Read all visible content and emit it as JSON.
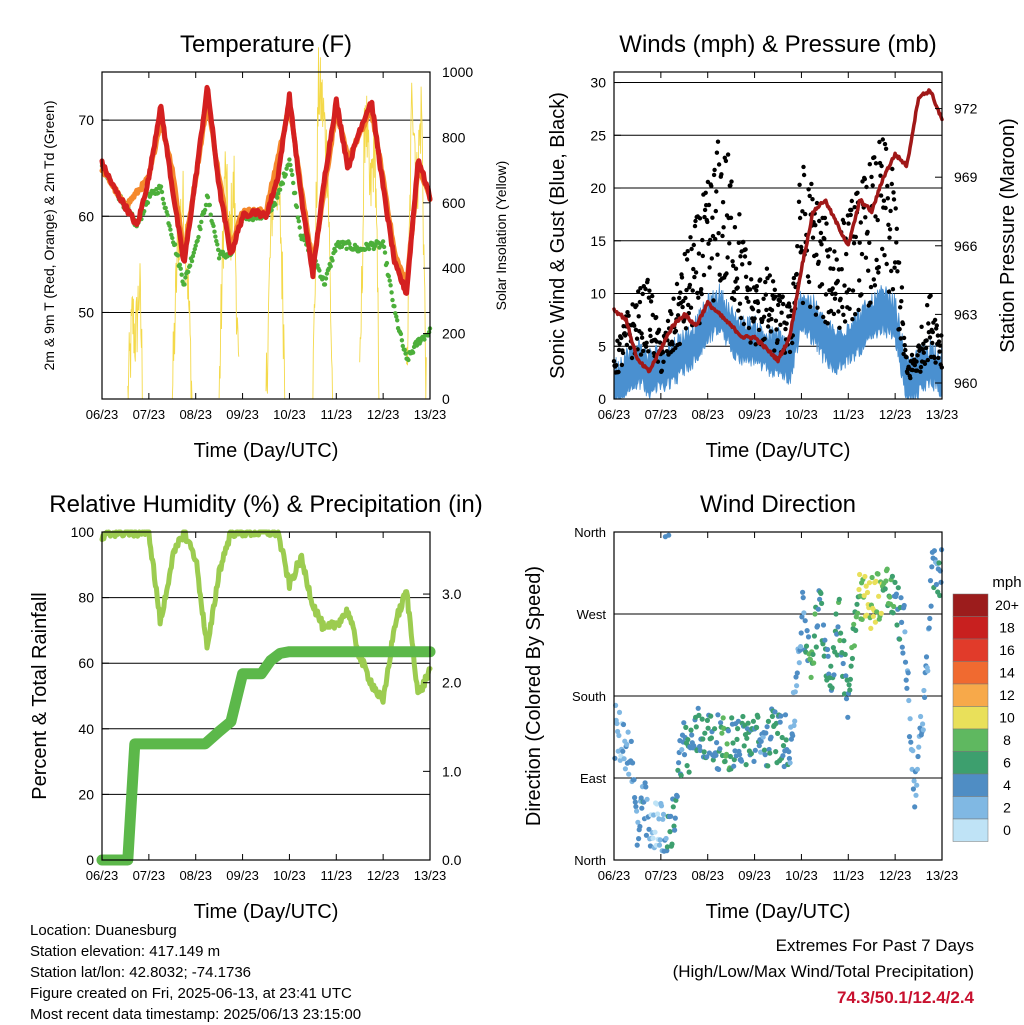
{
  "chart_data": [
    {
      "type": "line",
      "title": "Temperature (F)",
      "xlabel": "Time (Day/UTC)",
      "ylabel": "2m & 9m T (Red, Orange) & 2m Td (Green)",
      "y2label": "Solar Insolation (Yellow)",
      "x_ticks": [
        "06/23",
        "07/23",
        "08/23",
        "09/23",
        "10/23",
        "11/23",
        "12/23",
        "13/23"
      ],
      "ylim": [
        41,
        75
      ],
      "y_ticks": [
        50,
        60,
        70
      ],
      "y2lim": [
        0,
        1000
      ],
      "y2_ticks": [
        0,
        200,
        400,
        600,
        800,
        1000
      ],
      "grid": "horizontal",
      "series": [
        {
          "name": "2m T",
          "color": "#d42020",
          "x": [
            0,
            0.25,
            0.5,
            0.75,
            1.0,
            1.25,
            1.5,
            1.75,
            2.0,
            2.25,
            2.5,
            2.75,
            3.0,
            3.25,
            3.5,
            3.75,
            4.0,
            4.25,
            4.5,
            4.75,
            5.0,
            5.25,
            5.5,
            5.75,
            6.0,
            6.25,
            6.5,
            6.75,
            7.0
          ],
          "values": [
            65.5,
            63,
            61,
            59,
            64,
            71.5,
            63,
            55,
            64,
            73.5,
            63,
            56,
            60,
            60.5,
            60,
            64,
            72.5,
            62,
            54,
            64,
            72,
            65,
            69,
            72,
            63,
            55,
            52,
            66,
            62
          ]
        },
        {
          "name": "9m T",
          "color": "#f5892c",
          "x": [
            0,
            0.5,
            1.0,
            1.25,
            1.5,
            1.75,
            2.0,
            2.25,
            2.5,
            2.75,
            3.0,
            3.5,
            4.0,
            4.25,
            4.5,
            4.75,
            5.0,
            5.25,
            5.5,
            5.75,
            6.0,
            6.25,
            6.5,
            6.75,
            7.0
          ],
          "values": [
            65,
            61,
            64,
            70,
            65,
            56,
            64,
            72,
            64,
            57,
            60.5,
            60.5,
            71.5,
            63,
            55,
            63,
            71,
            66,
            68.5,
            71,
            64,
            56,
            53,
            65,
            62
          ]
        },
        {
          "name": "2m Td",
          "color": "#4caf3a",
          "x": [
            0,
            0.5,
            0.75,
            1.0,
            1.25,
            1.5,
            1.75,
            2.0,
            2.25,
            2.5,
            2.75,
            3.0,
            3.5,
            3.75,
            4.0,
            4.25,
            4.5,
            4.75,
            5.0,
            5.25,
            5.5,
            5.75,
            6.0,
            6.25,
            6.5,
            6.75,
            7.0
          ],
          "values": [
            65,
            61,
            59,
            62,
            63,
            58,
            53,
            57,
            62,
            56,
            56,
            60,
            60,
            62,
            66,
            58,
            56,
            53,
            57,
            57,
            56.5,
            57,
            57,
            50,
            45,
            47,
            48
          ]
        },
        {
          "name": "Solar Insolation",
          "color": "#f4d94a",
          "axis": "y2",
          "x": [
            0.55,
            0.65,
            0.72,
            0.8,
            0.88,
            1.5,
            1.62,
            1.72,
            1.82,
            1.92,
            2.5,
            2.62,
            2.72,
            2.82,
            2.92,
            3.5,
            3.62,
            3.72,
            3.82,
            3.92,
            4.5,
            4.62,
            4.72,
            4.82,
            4.92,
            5.5,
            5.62,
            5.72,
            5.82,
            5.92,
            6.5,
            6.62,
            6.72,
            6.82,
            6.92
          ],
          "values": [
            0,
            250,
            180,
            350,
            0,
            0,
            500,
            600,
            420,
            0,
            0,
            700,
            480,
            650,
            0,
            0,
            580,
            720,
            500,
            0,
            0,
            950,
            880,
            700,
            0,
            0,
            920,
            600,
            800,
            0,
            0,
            980,
            650,
            900,
            0
          ]
        }
      ]
    },
    {
      "type": "line",
      "title": "Winds (mph) & Pressure (mb)",
      "xlabel": "Time (Day/UTC)",
      "ylabel": "Sonic Wind & Gust (Blue, Black)",
      "y2label": "Station Pressure (Maroon)",
      "x_ticks": [
        "06/23",
        "07/23",
        "08/23",
        "09/23",
        "10/23",
        "11/23",
        "12/23",
        "13/23"
      ],
      "ylim": [
        0,
        31
      ],
      "y_ticks": [
        0,
        5,
        10,
        15,
        20,
        25,
        30
      ],
      "y2lim": [
        959.3,
        973.6
      ],
      "y2_ticks": [
        960,
        963,
        966,
        969,
        972
      ],
      "grid": "horizontal",
      "series": [
        {
          "name": "Sonic Wind",
          "color": "#4a90d0",
          "x": [
            0,
            0.25,
            0.5,
            0.75,
            1.0,
            1.25,
            1.5,
            1.75,
            2.0,
            2.25,
            2.5,
            2.75,
            3.0,
            3.25,
            3.5,
            3.75,
            4.0,
            4.25,
            4.5,
            4.75,
            5.0,
            5.25,
            5.5,
            5.75,
            6.0,
            6.25,
            6.5,
            6.75,
            7.0
          ],
          "values": [
            2,
            3,
            4,
            3,
            3.5,
            4,
            5,
            6,
            8,
            9,
            7,
            6,
            6,
            5,
            5,
            4,
            9,
            8,
            6,
            5,
            6,
            7,
            8,
            9,
            8,
            2,
            3,
            4,
            3
          ]
        },
        {
          "name": "Gust",
          "color": "#000000",
          "x": [
            0,
            0.25,
            0.5,
            0.75,
            1.0,
            1.25,
            1.5,
            1.75,
            2.0,
            2.25,
            2.5,
            2.75,
            3.0,
            3.25,
            3.5,
            3.75,
            4.0,
            4.25,
            4.5,
            4.75,
            5.0,
            5.25,
            5.5,
            5.75,
            6.0,
            6.25,
            6.5,
            6.75,
            7.0
          ],
          "values": [
            4,
            7,
            9,
            10,
            5,
            8,
            12,
            15,
            18,
            22,
            20,
            14,
            10,
            11,
            9,
            8,
            20,
            18,
            15,
            14,
            16,
            18,
            20,
            22,
            18,
            3,
            5,
            9,
            6
          ]
        },
        {
          "name": "Station Pressure",
          "color": "#a01818",
          "axis": "y2",
          "x": [
            0,
            0.25,
            0.5,
            0.75,
            1.0,
            1.25,
            1.5,
            1.75,
            2.0,
            2.25,
            2.5,
            2.75,
            3.0,
            3.25,
            3.5,
            3.75,
            4.0,
            4.25,
            4.5,
            4.75,
            5.0,
            5.25,
            5.5,
            5.75,
            6.0,
            6.25,
            6.5,
            6.75,
            7.0
          ],
          "values": [
            963.2,
            962.8,
            961,
            960.5,
            961.5,
            962.5,
            963,
            962.5,
            963.5,
            963,
            962.5,
            962,
            962,
            961.5,
            961,
            962,
            965,
            967.5,
            968,
            967,
            966,
            968,
            967.5,
            969,
            970,
            969.5,
            972.5,
            972.8,
            971.5
          ]
        }
      ]
    },
    {
      "type": "line",
      "title": "Relative Humidity (%) & Precipitation (in)",
      "xlabel": "Time (Day/UTC)",
      "ylabel": "Percent & Total Rainfall",
      "x_ticks": [
        "06/23",
        "07/23",
        "08/23",
        "09/23",
        "10/23",
        "11/23",
        "12/23",
        "13/23"
      ],
      "ylim": [
        0,
        100
      ],
      "y_ticks": [
        0,
        20,
        40,
        60,
        80,
        100
      ],
      "y2lim": [
        0,
        3.7
      ],
      "y2_ticks": [
        "0.0",
        "1.0",
        "2.0",
        "3.0"
      ],
      "grid": "horizontal",
      "series": [
        {
          "name": "Relative Humidity",
          "color": "#9ccc50",
          "x": [
            0,
            0.25,
            0.5,
            0.75,
            1.0,
            1.25,
            1.5,
            1.75,
            2.0,
            2.25,
            2.5,
            2.75,
            3.0,
            3.25,
            3.5,
            3.75,
            4.0,
            4.25,
            4.5,
            4.75,
            5.0,
            5.25,
            5.5,
            5.75,
            6.0,
            6.25,
            6.5,
            6.75,
            7.0
          ],
          "values": [
            98,
            100,
            100,
            100,
            100,
            72,
            92,
            100,
            92,
            64,
            88,
            100,
            100,
            100,
            100,
            100,
            84,
            92,
            78,
            70,
            72,
            76,
            62,
            54,
            48,
            72,
            82,
            50,
            58
          ]
        },
        {
          "name": "Total Precipitation",
          "color": "#5cb84a",
          "axis": "y2",
          "x": [
            0,
            0.55,
            0.7,
            1.0,
            1.5,
            2.0,
            2.2,
            2.5,
            2.75,
            3.0,
            3.4,
            3.6,
            3.8,
            4.0,
            4.5,
            5.0,
            6.0,
            7.0
          ],
          "values": [
            0,
            0,
            1.31,
            1.31,
            1.31,
            1.31,
            1.31,
            1.45,
            1.56,
            2.1,
            2.1,
            2.25,
            2.33,
            2.35,
            2.35,
            2.35,
            2.35,
            2.35
          ]
        }
      ]
    },
    {
      "type": "scatter",
      "title": "Wind Direction",
      "xlabel": "Time (Day/UTC)",
      "ylabel": "Direction (Colored By Speed)",
      "x_ticks": [
        "06/23",
        "07/23",
        "08/23",
        "09/23",
        "10/23",
        "11/23",
        "12/23",
        "13/23"
      ],
      "y_ticks": [
        "North",
        "East",
        "South",
        "West",
        "North"
      ],
      "ylim": [
        0,
        360
      ],
      "grid": "horizontal",
      "legend": {
        "title": "mph",
        "labels": [
          "20+",
          "18",
          "16",
          "14",
          "12",
          "10",
          "8",
          "6",
          "4",
          "2",
          "0"
        ],
        "colors": [
          "#9c1c1c",
          "#c8201f",
          "#e13b2a",
          "#f06a30",
          "#f7a94a",
          "#e9e05a",
          "#5fb860",
          "#3d9f6e",
          "#4f8dc4",
          "#80b8e3",
          "#bfe3f6"
        ]
      },
      "series": [
        {
          "name": "Direction",
          "x": [
            0.05,
            0.2,
            0.35,
            0.5,
            0.65,
            0.8,
            0.95,
            1.1,
            1.25,
            1.45,
            1.6,
            1.8,
            2.0,
            2.2,
            2.4,
            2.6,
            2.8,
            3.0,
            3.2,
            3.4,
            3.6,
            3.8,
            4.0,
            4.2,
            4.4,
            4.6,
            4.8,
            5.0,
            5.2,
            5.4,
            5.6,
            5.8,
            6.0,
            6.2,
            6.4,
            6.6,
            6.8
          ],
          "values": [
            140,
            130,
            120,
            30,
            60,
            20,
            50,
            10,
            40,
            130,
            120,
            140,
            135,
            130,
            125,
            132,
            130,
            135,
            125,
            140,
            130,
            135,
            270,
            220,
            280,
            200,
            260,
            180,
            300,
            280,
            290,
            300,
            280,
            250,
            80,
            150,
            320
          ],
          "speed": [
            2,
            2,
            3,
            4,
            4,
            2,
            1,
            4,
            5,
            4,
            5,
            6,
            5,
            5,
            7,
            4,
            5,
            5,
            4,
            6,
            5,
            3,
            3,
            7,
            5,
            5,
            6,
            5,
            8,
            10,
            9,
            8,
            6,
            4,
            2,
            3,
            4
          ]
        }
      ]
    }
  ],
  "info": {
    "location": "Location: Duanesburg",
    "elevation": "Station elevation: 417.149 m",
    "latlon": "Station lat/lon: 42.8032; -74.1736",
    "created": "Figure created on Fri, 2025-06-13, at 23:41 UTC",
    "recent": "Most recent data timestamp: 2025/06/13 23:15:00"
  },
  "extremes": {
    "title": "Extremes For Past 7 Days",
    "subtitle": "(High/Low/Max Wind/Total Precipitation)",
    "values": "74.3/50.1/12.4/2.4"
  }
}
